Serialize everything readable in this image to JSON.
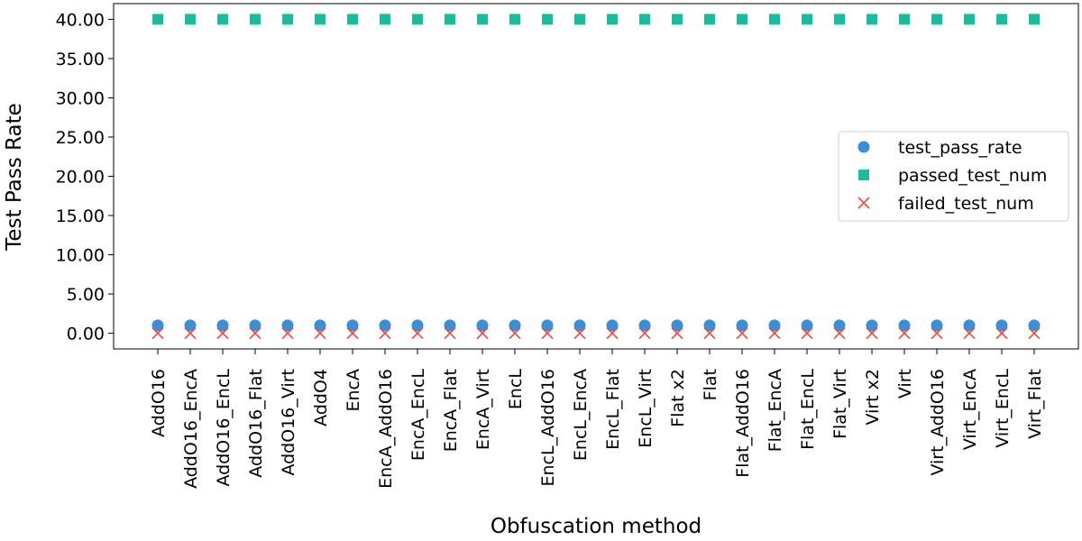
{
  "chart_data": {
    "type": "scatter",
    "title": "",
    "xlabel": "Obfuscation method",
    "ylabel": "Test Pass Rate",
    "categories": [
      "AddO16",
      "AddO16_EncA",
      "AddO16_EncL",
      "AddO16_Flat",
      "AddO16_Virt",
      "AddO4",
      "EncA",
      "EncA_AddO16",
      "EncA_EncL",
      "EncA_Flat",
      "EncA_Virt",
      "EncL",
      "EncL_AddO16",
      "EncL_EncA",
      "EncL_Flat",
      "EncL_Virt",
      "Flat x2",
      "Flat",
      "Flat_AddO16",
      "Flat_EncA",
      "Flat_EncL",
      "Flat_Virt",
      "Virt x2",
      "Virt",
      "Virt_AddO16",
      "Virt_EncA",
      "Virt_EncL",
      "Virt_Flat"
    ],
    "y_ticks": [
      "0.00",
      "5.00",
      "10.00",
      "15.00",
      "20.00",
      "25.00",
      "30.00",
      "35.00",
      "40.00"
    ],
    "y_tick_values": [
      0,
      5,
      10,
      15,
      20,
      25,
      30,
      35,
      40
    ],
    "ylim": [
      -2,
      42
    ],
    "grid": false,
    "legend_position": "center-right",
    "series": [
      {
        "name": "test_pass_rate",
        "marker": "circle",
        "color": "#3a8fd9",
        "values": [
          1,
          1,
          1,
          1,
          1,
          1,
          1,
          1,
          1,
          1,
          1,
          1,
          1,
          1,
          1,
          1,
          1,
          1,
          1,
          1,
          1,
          1,
          1,
          1,
          1,
          1,
          1,
          1
        ]
      },
      {
        "name": "passed_test_num",
        "marker": "square",
        "color": "#1abc9c",
        "values": [
          40,
          40,
          40,
          40,
          40,
          40,
          40,
          40,
          40,
          40,
          40,
          40,
          40,
          40,
          40,
          40,
          40,
          40,
          40,
          40,
          40,
          40,
          40,
          40,
          40,
          40,
          40,
          40
        ]
      },
      {
        "name": "failed_test_num",
        "marker": "x",
        "color": "#e74c3c",
        "values": [
          0,
          0,
          0,
          0,
          0,
          0,
          0,
          0,
          0,
          0,
          0,
          0,
          0,
          0,
          0,
          0,
          0,
          0,
          0,
          0,
          0,
          0,
          0,
          0,
          0,
          0,
          0,
          0
        ]
      }
    ]
  }
}
